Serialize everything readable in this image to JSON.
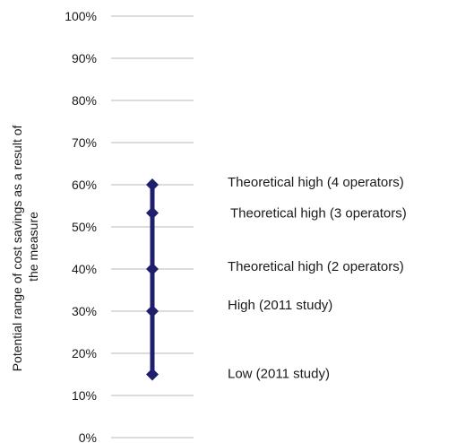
{
  "chart_data": {
    "type": "line",
    "title": "",
    "xlabel": "",
    "ylabel_lines": [
      "Potential range of cost savings as a result of",
      "the measure"
    ],
    "y_unit": "%",
    "ylim": [
      0,
      100
    ],
    "y_ticks": [
      0,
      10,
      20,
      30,
      40,
      50,
      60,
      70,
      80,
      90,
      100
    ],
    "y_tick_labels": [
      "0%",
      "10%",
      "20%",
      "30%",
      "40%",
      "50%",
      "60%",
      "70%",
      "80%",
      "90%",
      "100%"
    ],
    "grid": true,
    "legend": "none",
    "series": [
      {
        "values": [
          15,
          30,
          40,
          53.3,
          60
        ],
        "point_labels": [
          "Low (2011 study)",
          "High (2011 study)",
          "Theoretical high (2 operators)",
          "Theoretical high (3 operators)",
          "Theoretical high (4 operators)"
        ],
        "color": "#1f1f6e",
        "marker": "diamond"
      }
    ]
  }
}
